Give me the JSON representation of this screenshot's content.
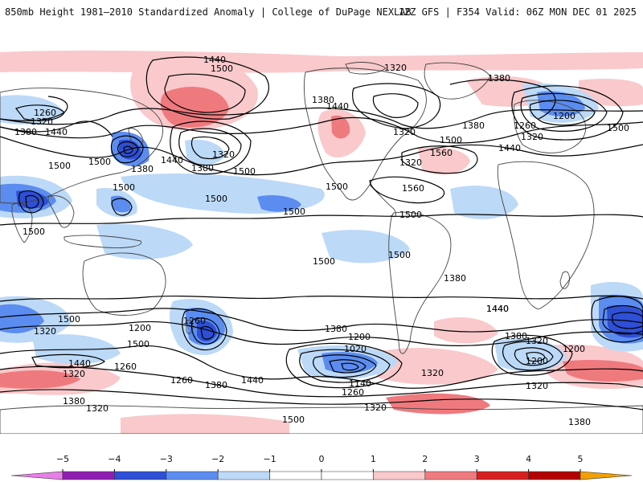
{
  "header": {
    "title": "850mb Height 1981–2010 Standardized Anomaly | College of DuPage NEXLAB",
    "run_info": "12Z GFS | F354 Valid: 06Z MON DEC 01 2025"
  },
  "map": {
    "contour_labels": [
      "1440",
      "1500",
      "1320",
      "1380",
      "1260",
      "1320",
      "1380",
      "1440",
      "1500",
      "1380",
      "1440",
      "1320",
      "1380",
      "1500",
      "1320",
      "1380",
      "1500",
      "1500",
      "1500",
      "1500",
      "1440",
      "1320",
      "1380",
      "1500",
      "1560",
      "1560",
      "1260",
      "1200",
      "1320",
      "1500",
      "1440",
      "1500",
      "1500",
      "1500",
      "1500",
      "1500",
      "1380",
      "1440",
      "1500",
      "1320",
      "1200",
      "1260",
      "1500",
      "1440",
      "1260",
      "1320",
      "1260",
      "1380",
      "1380",
      "1320",
      "1440",
      "1380",
      "1200",
      "1020",
      "1140",
      "1260",
      "1320",
      "1320",
      "1500",
      "1440",
      "1380",
      "1320",
      "1200",
      "1200",
      "1320",
      "1380"
    ],
    "colors": {
      "neg5": "#e97ee9",
      "neg4": "#8f1fb3",
      "neg3": "#2e4fd6",
      "neg2": "#5b8cf0",
      "neg1": "#bcd9f7",
      "pos1": "#f9c9cc",
      "pos2": "#ef7a7e",
      "pos3": "#d81f1f",
      "pos4": "#b30000",
      "pos5": "#f2a000",
      "land_outline": "#444444",
      "contour": "#000000"
    }
  },
  "colorbar": {
    "ticks": [
      "−5",
      "−4",
      "−3",
      "−2",
      "−1",
      "0",
      "1",
      "2",
      "3",
      "4",
      "5"
    ],
    "colors": [
      "#e97ee9",
      "#8f1fb3",
      "#2e4fd6",
      "#5b8cf0",
      "#bcd9f7",
      "#ffffff",
      "#ffffff",
      "#f9c9cc",
      "#ef7a7e",
      "#d81f1f",
      "#b30000",
      "#f2a000"
    ]
  }
}
